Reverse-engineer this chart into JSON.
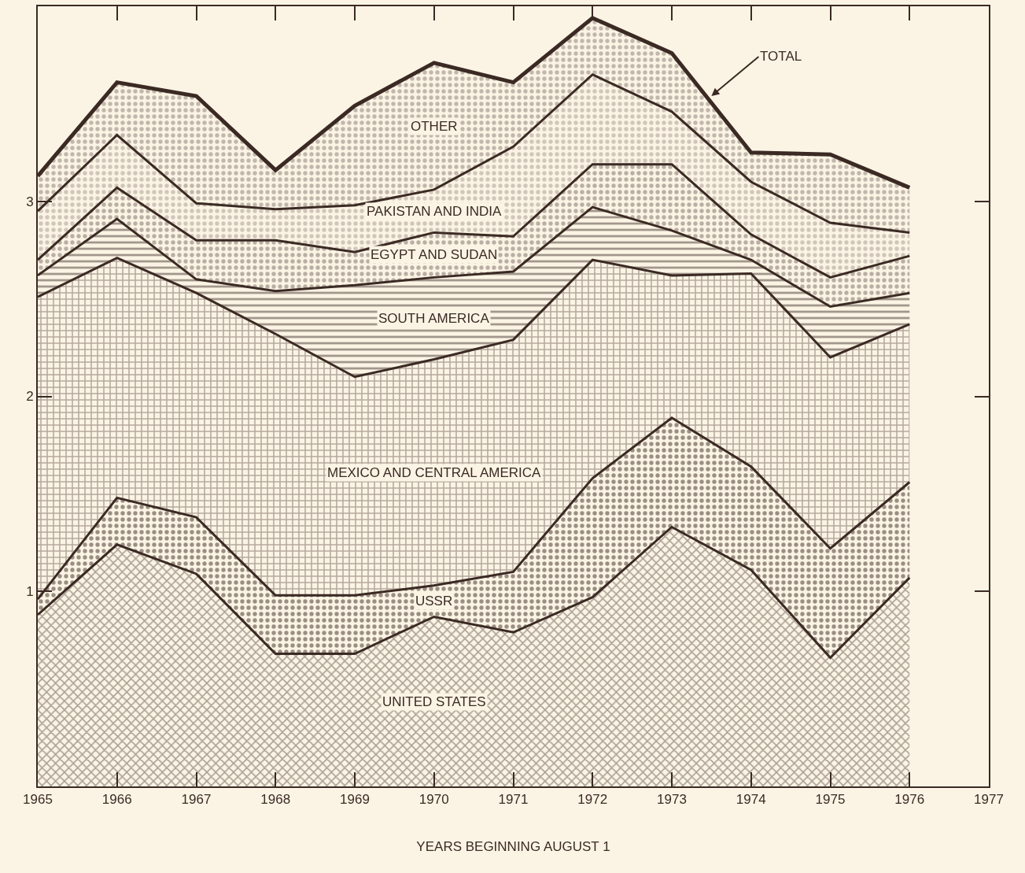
{
  "chart_data": {
    "type": "area",
    "stacked": true,
    "xlabel": "YEARS BEGINNING AUGUST 1",
    "x": [
      1965,
      1966,
      1967,
      1968,
      1969,
      1970,
      1971,
      1972,
      1973,
      1974,
      1975,
      1976
    ],
    "series": [
      {
        "name": "UNITED STATES",
        "color": "#5a4a44",
        "values": [
          0.88,
          1.24,
          1.09,
          0.68,
          0.68,
          0.87,
          0.79,
          0.97,
          1.33,
          1.11,
          0.66,
          1.07
        ]
      },
      {
        "name": "USSR",
        "color": "#3b2a24",
        "values": [
          0.08,
          0.24,
          0.29,
          0.3,
          0.3,
          0.16,
          0.31,
          0.61,
          0.56,
          0.53,
          0.56,
          0.49
        ]
      },
      {
        "name": "MEXICO AND CENTRAL AMERICA",
        "color": "#6e5e58",
        "values": [
          1.55,
          1.23,
          1.15,
          1.34,
          1.12,
          1.16,
          1.19,
          1.12,
          0.73,
          0.99,
          0.98,
          0.81
        ]
      },
      {
        "name": "SOUTH AMERICA",
        "color": "#4a3a34",
        "values": [
          0.11,
          0.2,
          0.07,
          0.22,
          0.47,
          0.42,
          0.35,
          0.27,
          0.23,
          0.07,
          0.26,
          0.16
        ]
      },
      {
        "name": "EGYPT AND SUDAN",
        "color": "#7a6a64",
        "values": [
          0.08,
          0.16,
          0.2,
          0.26,
          0.17,
          0.23,
          0.18,
          0.22,
          0.34,
          0.13,
          0.15,
          0.19
        ]
      },
      {
        "name": "PAKISTAN AND INDIA",
        "color": "#a89890",
        "values": [
          0.25,
          0.27,
          0.19,
          0.16,
          0.24,
          0.22,
          0.46,
          0.46,
          0.27,
          0.27,
          0.28,
          0.12
        ]
      },
      {
        "name": "OTHER",
        "color": "#8a7a74",
        "values": [
          0.18,
          0.27,
          0.55,
          0.2,
          0.51,
          0.65,
          0.33,
          0.29,
          0.3,
          0.15,
          0.35,
          0.23
        ]
      }
    ],
    "annotations": [
      {
        "text": "TOTAL",
        "x": 1973.5,
        "y": 3.54
      }
    ],
    "xlim": [
      1965,
      1977
    ],
    "xticks": [
      1965,
      1966,
      1967,
      1968,
      1969,
      1970,
      1971,
      1972,
      1973,
      1974,
      1975,
      1976,
      1977
    ],
    "ylim": [
      0,
      4
    ],
    "yticks": [
      1,
      2,
      3
    ],
    "grid": false,
    "legend": false
  }
}
